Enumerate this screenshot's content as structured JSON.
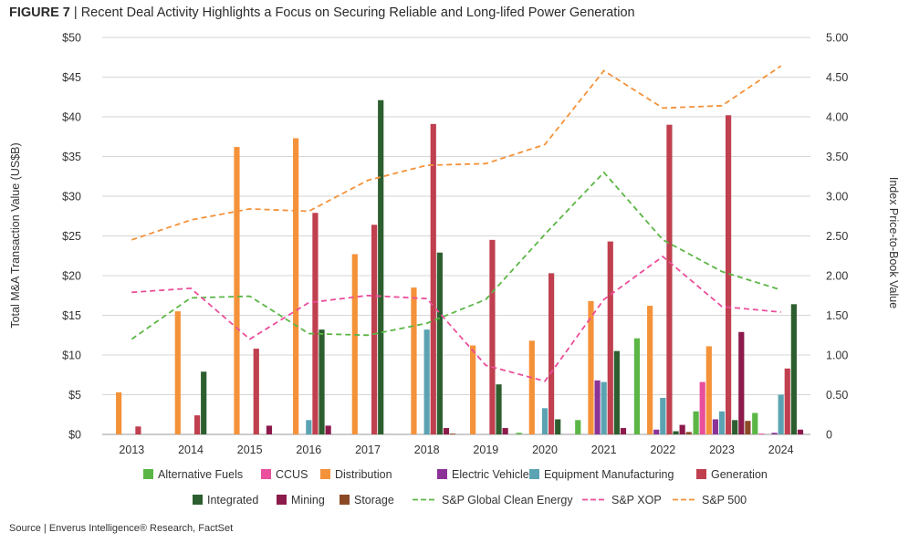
{
  "header": {
    "figure_label": "FIGURE 7",
    "separator": " | ",
    "title": "Recent Deal Activity Highlights a Focus on Securing Reliable and Long-lifed Power Generation"
  },
  "footer": {
    "source": "Source | Enverus Intelligence® Research, FactSet"
  },
  "chart_data": {
    "type": "bar",
    "categories": [
      "2013",
      "2014",
      "2015",
      "2016",
      "2017",
      "2018",
      "2019",
      "2020",
      "2021",
      "2022",
      "2023",
      "2024"
    ],
    "ylabel": "Total M&A Transaction Value (US$B)",
    "y2label": "Index Price-to-Book Value",
    "ylim": [
      0,
      50
    ],
    "y2lim": [
      0,
      5
    ],
    "y_ticks": [
      "$0",
      "$5",
      "$10",
      "$15",
      "$20",
      "$25",
      "$30",
      "$35",
      "$40",
      "$45",
      "$50"
    ],
    "y2_ticks": [
      "0",
      "0.50",
      "1.00",
      "1.50",
      "2.00",
      "2.50",
      "3.00",
      "3.50",
      "4.00",
      "4.50",
      "5.00"
    ],
    "grid": true,
    "legend_position": "bottom",
    "bar_series": [
      {
        "name": "Alternative Fuels",
        "color": "#5cb646",
        "values": [
          0,
          0,
          0,
          0,
          0,
          0,
          0,
          0.2,
          1.8,
          12.1,
          2.9,
          2.7
        ]
      },
      {
        "name": "CCUS",
        "color": "#e94f9c",
        "values": [
          0,
          0,
          0,
          0,
          0,
          0,
          0,
          0,
          0,
          0,
          6.6,
          0.1
        ]
      },
      {
        "name": "Distribution",
        "color": "#f4923a",
        "values": [
          5.3,
          15.5,
          36.2,
          37.3,
          22.7,
          18.5,
          11.2,
          11.8,
          16.8,
          16.2,
          11.1,
          0
        ]
      },
      {
        "name": "Electric Vehicles",
        "color": "#8b3397",
        "values": [
          0,
          0,
          0,
          0,
          0,
          0,
          0,
          0,
          6.8,
          0.6,
          1.9,
          0.2
        ]
      },
      {
        "name": "Equipment Manufacturing",
        "color": "#5ba3b3",
        "values": [
          0,
          0,
          0,
          1.8,
          0,
          13.2,
          0,
          3.3,
          6.6,
          4.6,
          2.9,
          5.0
        ]
      },
      {
        "name": "Generation",
        "color": "#c0404f",
        "values": [
          1.0,
          2.4,
          10.8,
          27.9,
          26.4,
          39.1,
          24.5,
          20.3,
          24.3,
          39.0,
          40.2,
          8.3
        ]
      },
      {
        "name": "Integrated",
        "color": "#2d5e2f",
        "values": [
          0,
          7.9,
          0,
          13.2,
          42.1,
          22.9,
          6.3,
          1.9,
          10.5,
          0.4,
          1.8,
          16.4
        ]
      },
      {
        "name": "Mining",
        "color": "#8c1a4a",
        "values": [
          0,
          0,
          1.1,
          1.1,
          0,
          0.8,
          0.8,
          0,
          0.8,
          1.2,
          12.9,
          0.6
        ]
      },
      {
        "name": "Storage",
        "color": "#8b4a25",
        "values": [
          0,
          0,
          0,
          0,
          0,
          0.1,
          0,
          0,
          0,
          0.3,
          1.7,
          0
        ]
      }
    ],
    "line_series": [
      {
        "name": "S&P Global Clean Energy",
        "color": "#5cb646",
        "axis": "right",
        "values": [
          1.2,
          1.72,
          1.74,
          1.27,
          1.25,
          1.4,
          1.7,
          2.52,
          3.3,
          2.45,
          2.05,
          1.82
        ]
      },
      {
        "name": "S&P XOP",
        "color": "#ec4e9a",
        "axis": "right",
        "values": [
          1.79,
          1.84,
          1.2,
          1.66,
          1.75,
          1.71,
          0.87,
          0.67,
          1.7,
          2.24,
          1.61,
          1.54
        ]
      },
      {
        "name": "S&P 500",
        "color": "#f4923a",
        "axis": "right",
        "values": [
          2.45,
          2.7,
          2.84,
          2.81,
          3.2,
          3.39,
          3.41,
          3.65,
          4.58,
          4.11,
          4.14,
          4.64
        ]
      }
    ]
  }
}
